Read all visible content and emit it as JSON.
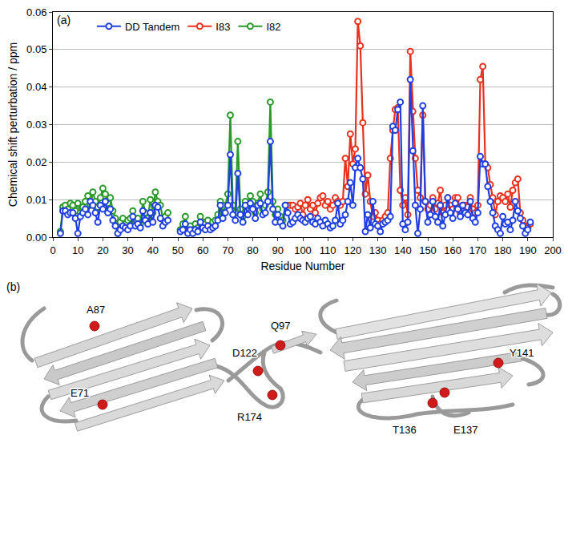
{
  "chart_data": {
    "type": "line",
    "panel": "(a)",
    "x_label": "Residue Number",
    "y_label": "Chemical shift perturbation / ppm",
    "xlim": [
      0,
      200
    ],
    "xticks": [
      0,
      10,
      20,
      30,
      40,
      50,
      60,
      70,
      80,
      90,
      100,
      110,
      120,
      130,
      140,
      150,
      160,
      170,
      180,
      190,
      200
    ],
    "ylim": [
      0,
      0.06
    ],
    "yticks": [
      {
        "value": 0,
        "label": "0.00"
      },
      0.01,
      0.02,
      0.03,
      0.04,
      0.05,
      0.06
    ],
    "grid": true,
    "legend": "upper left",
    "marker": "circle-open",
    "line_style": "solid",
    "series": [
      {
        "name": "DD Tandem",
        "color": "#1f3fe0",
        "x": [
          3,
          4,
          5,
          6,
          7,
          8,
          9,
          10,
          11,
          12,
          13,
          14,
          15,
          16,
          17,
          18,
          19,
          20,
          21,
          22,
          23,
          24,
          25,
          26,
          27,
          28,
          29,
          30,
          31,
          32,
          33,
          34,
          35,
          36,
          37,
          38,
          39,
          40,
          41,
          42,
          43,
          44,
          45,
          46,
          47,
          48,
          49,
          50,
          51,
          52,
          53,
          54,
          55,
          56,
          57,
          58,
          59,
          60,
          61,
          62,
          63,
          64,
          65,
          66,
          67,
          68,
          69,
          70,
          71,
          72,
          73,
          74,
          75,
          76,
          77,
          78,
          79,
          80,
          81,
          82,
          83,
          84,
          85,
          86,
          87,
          88,
          89,
          90,
          91,
          92,
          93,
          94,
          95,
          96,
          97,
          98,
          99,
          100,
          101,
          102,
          103,
          104,
          105,
          106,
          107,
          108,
          109,
          110,
          111,
          112,
          113,
          114,
          115,
          116,
          117,
          118,
          119,
          120,
          121,
          122,
          123,
          124,
          125,
          126,
          127,
          128,
          129,
          130,
          131,
          132,
          133,
          134,
          135,
          136,
          137,
          138,
          139,
          140,
          141,
          142,
          143,
          144,
          145,
          146,
          147,
          148,
          149,
          150,
          151,
          152,
          153,
          154,
          155,
          156,
          157,
          158,
          159,
          160,
          161,
          162,
          163,
          164,
          165,
          166,
          167,
          168,
          169,
          170,
          171,
          172,
          173,
          174,
          175,
          176,
          177,
          178,
          179,
          180,
          181,
          182,
          183,
          184,
          185,
          186,
          187,
          188,
          189,
          190,
          191
        ],
        "values": [
          0.001,
          0.007,
          0.007,
          0.006,
          0.0065,
          0.0065,
          0.005,
          0.001,
          0.0055,
          0.0065,
          0.0075,
          0.006,
          0.0095,
          0.0085,
          0.0065,
          0.004,
          0.0085,
          0.0075,
          0.0095,
          0.0065,
          0.0075,
          0.0045,
          0.003,
          0.001,
          0.002,
          0.003,
          0.0025,
          0.002,
          0.003,
          0.0055,
          0.003,
          0.0035,
          0.0025,
          0.007,
          0.0045,
          0.0035,
          0.0065,
          0.004,
          0.0085,
          0.008,
          0.005,
          0.003,
          0.004,
          0.0045,
          null,
          null,
          null,
          null,
          0.0015,
          0.002,
          0.0035,
          0.001,
          0.002,
          0.001,
          0.002,
          0.0015,
          0.004,
          0.0025,
          0.002,
          0.003,
          0.002,
          0.0025,
          0.003,
          0.0045,
          0.0085,
          0.005,
          0.0065,
          0.0085,
          0.022,
          0.006,
          0.0045,
          0.017,
          0.006,
          0.004,
          0.0085,
          0.006,
          0.009,
          0.0075,
          0.005,
          0.0085,
          0.009,
          0.006,
          0.0065,
          0.0095,
          0.0255,
          0.0075,
          0.004,
          0.006,
          0.004,
          0.003,
          0.0085,
          0.0065,
          0.0035,
          0.004,
          0.005,
          0.006,
          0.005,
          0.0045,
          0.004,
          0.005,
          0.0055,
          0.004,
          0.0035,
          0.005,
          0.004,
          0.003,
          0.0045,
          0.0035,
          0.0025,
          0.003,
          0.0045,
          0.009,
          0.0035,
          0.0045,
          0.006,
          0.0095,
          0.0145,
          0.0085,
          0.0185,
          0.021,
          0.0185,
          0.0155,
          0.0015,
          0.006,
          0.0025,
          0.0095,
          0.0035,
          0.003,
          0.0015,
          0.0035,
          0.004,
          0.0045,
          0.0055,
          0.0295,
          0.0285,
          0.034,
          0.036,
          0.0035,
          0.002,
          0.004,
          0.042,
          0.023,
          0.0085,
          0.001,
          0.0075,
          0.035,
          0.0095,
          0.004,
          0.006,
          0.0095,
          0.0055,
          0.004,
          0.0085,
          0.003,
          0.006,
          0.0105,
          0.0065,
          0.005,
          0.009,
          0.0075,
          0.0055,
          0.0085,
          0.0065,
          0.006,
          0.0095,
          0.005,
          0.004,
          0.0065,
          0.0215,
          0.0195,
          0.0195,
          0.0135,
          0.0095,
          0.0065,
          0.003,
          0.002,
          0.001,
          0.0055,
          0.0035,
          0.004,
          0.002,
          0.0045,
          0.0095,
          0.007,
          0.005,
          0.003,
          0.001,
          0.002,
          0.004
        ]
      },
      {
        "name": "I83",
        "color": "#e8321e",
        "x": [
          95,
          96,
          97,
          98,
          99,
          100,
          101,
          102,
          103,
          104,
          105,
          106,
          107,
          108,
          109,
          110,
          111,
          112,
          113,
          114,
          115,
          116,
          117,
          118,
          119,
          120,
          121,
          122,
          123,
          124,
          125,
          126,
          127,
          128,
          129,
          130,
          131,
          132,
          133,
          134,
          135,
          136,
          137,
          138,
          139,
          140,
          141,
          142,
          143,
          144,
          145,
          146,
          147,
          148,
          149,
          150,
          151,
          152,
          153,
          154,
          155,
          156,
          157,
          158,
          159,
          160,
          161,
          162,
          163,
          164,
          165,
          166,
          167,
          168,
          169,
          170,
          171,
          172,
          173,
          174,
          175,
          176,
          177,
          178,
          179,
          180,
          181,
          182,
          183,
          184,
          185,
          186,
          187,
          188,
          189,
          190,
          191
        ],
        "values": [
          0.0085,
          0.0085,
          0.0075,
          0.008,
          0.009,
          0.006,
          0.0085,
          0.01,
          0.0075,
          0.0085,
          0.0065,
          0.009,
          0.0105,
          0.011,
          0.0085,
          0.0095,
          0.0075,
          0.0085,
          0.0105,
          0.0095,
          0.0085,
          0.0095,
          0.021,
          0.0135,
          0.0275,
          0.0195,
          0.0235,
          0.0575,
          0.051,
          0.0305,
          0.0115,
          0.0165,
          0.0095,
          0.0055,
          0.0065,
          0.0045,
          0.0035,
          0.0045,
          0.0055,
          0.0065,
          0.021,
          0.0285,
          0.034,
          0.0345,
          0.0125,
          0.0085,
          0.0105,
          0.006,
          0.0495,
          0.0335,
          0.021,
          0.0125,
          0.0105,
          0.0325,
          0.0095,
          0.0075,
          0.0085,
          0.0105,
          0.0075,
          0.009,
          0.0125,
          0.0065,
          0.0085,
          0.0105,
          0.0085,
          0.0075,
          0.0105,
          0.0105,
          0.0065,
          0.0085,
          0.0085,
          0.008,
          0.0105,
          0.0075,
          0.0065,
          0.0085,
          0.042,
          0.0455,
          0.0195,
          0.0185,
          0.014,
          0.0105,
          0.006,
          0.0095,
          0.011,
          0.0105,
          0.0095,
          0.0115,
          0.008,
          0.0125,
          0.0145,
          0.0155,
          0.0065,
          0.0045,
          0.003,
          0.0025,
          0.0035
        ]
      },
      {
        "name": "I82",
        "color": "#2a9a2a",
        "x": [
          3,
          4,
          5,
          6,
          7,
          8,
          9,
          10,
          11,
          12,
          13,
          14,
          15,
          16,
          17,
          18,
          19,
          20,
          21,
          22,
          23,
          24,
          25,
          26,
          27,
          28,
          29,
          30,
          31,
          32,
          33,
          34,
          35,
          36,
          37,
          38,
          39,
          40,
          41,
          42,
          43,
          44,
          45,
          46,
          47,
          48,
          49,
          50,
          51,
          52,
          53,
          54,
          55,
          56,
          57,
          58,
          59,
          60,
          61,
          62,
          63,
          64,
          65,
          66,
          67,
          68,
          69,
          70,
          71,
          72,
          73,
          74,
          75,
          76,
          77,
          78,
          79,
          80,
          81,
          82,
          83,
          84,
          85,
          86,
          87,
          88,
          89,
          90,
          91,
          92,
          93,
          94
        ],
        "values": [
          0.0015,
          0.008,
          0.0085,
          0.0075,
          0.009,
          0.0085,
          0.007,
          0.009,
          0.0065,
          0.008,
          0.0095,
          0.011,
          0.0085,
          0.012,
          0.0095,
          0.008,
          0.0105,
          0.013,
          0.0115,
          0.009,
          0.0105,
          0.007,
          0.005,
          0.001,
          0.004,
          0.005,
          0.0035,
          0.0045,
          0.005,
          0.007,
          0.004,
          0.005,
          0.0035,
          0.0095,
          0.0065,
          0.005,
          0.01,
          0.0065,
          0.012,
          0.0095,
          0.0085,
          0.005,
          0.0055,
          0.0065,
          null,
          null,
          null,
          null,
          0.002,
          0.0035,
          0.0055,
          0.002,
          0.003,
          0.0015,
          0.0035,
          0.0025,
          0.0055,
          0.004,
          0.0035,
          0.0045,
          0.003,
          0.004,
          0.0045,
          0.006,
          0.0095,
          0.0065,
          0.0085,
          0.0115,
          0.0325,
          0.0085,
          0.0065,
          0.0255,
          0.0075,
          0.0055,
          0.0095,
          0.0085,
          0.011,
          0.0095,
          0.0065,
          0.009,
          0.0115,
          0.0075,
          0.0085,
          0.012,
          0.036,
          0.0095,
          0.006,
          0.0075,
          0.0055,
          0.0045,
          0.0085,
          0.0085
        ]
      }
    ]
  },
  "diagram": {
    "type": "structure",
    "panel": "(b)",
    "labels": [
      "A87",
      "E71",
      "D122",
      "Q97",
      "R174",
      "T136",
      "E137",
      "Y141"
    ]
  }
}
